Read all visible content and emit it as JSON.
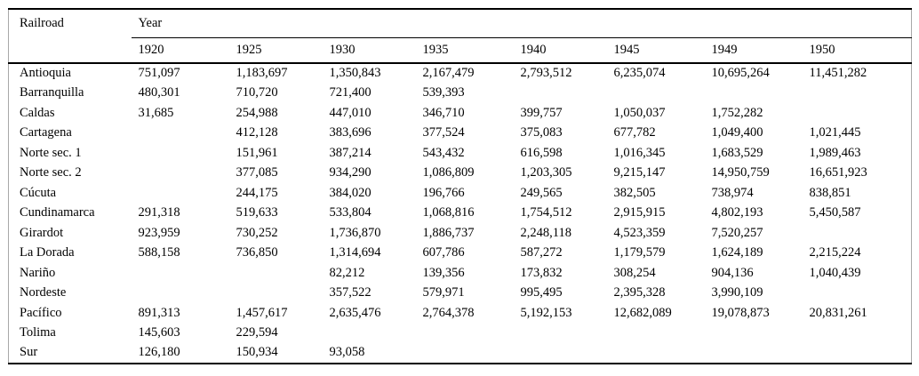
{
  "table": {
    "col_header": "Railroad",
    "year_header": "Year",
    "years": [
      "1920",
      "1925",
      "1930",
      "1935",
      "1940",
      "1945",
      "1949",
      "1950"
    ],
    "rows": [
      {
        "name": "Antioquia",
        "values": [
          "751,097",
          "1,183,697",
          "1,350,843",
          "2,167,479",
          "2,793,512",
          "6,235,074",
          "10,695,264",
          "11,451,282"
        ]
      },
      {
        "name": "Barranquilla",
        "values": [
          "480,301",
          "710,720",
          "721,400",
          "539,393",
          "",
          "",
          "",
          ""
        ]
      },
      {
        "name": "Caldas",
        "values": [
          "31,685",
          "254,988",
          "447,010",
          "346,710",
          "399,757",
          "1,050,037",
          "1,752,282",
          ""
        ]
      },
      {
        "name": "Cartagena",
        "values": [
          "",
          "412,128",
          "383,696",
          "377,524",
          "375,083",
          "677,782",
          "1,049,400",
          "1,021,445"
        ]
      },
      {
        "name": "Norte sec. 1",
        "values": [
          "",
          "151,961",
          "387,214",
          "543,432",
          "616,598",
          "1,016,345",
          "1,683,529",
          "1,989,463"
        ]
      },
      {
        "name": "Norte sec. 2",
        "values": [
          "",
          "377,085",
          "934,290",
          "1,086,809",
          "1,203,305",
          "9,215,147",
          "14,950,759",
          "16,651,923"
        ]
      },
      {
        "name": "Cúcuta",
        "values": [
          "",
          "244,175",
          "384,020",
          "196,766",
          "249,565",
          "382,505",
          "738,974",
          "838,851"
        ]
      },
      {
        "name": "Cundinamarca",
        "values": [
          "291,318",
          "519,633",
          "533,804",
          "1,068,816",
          "1,754,512",
          "2,915,915",
          "4,802,193",
          "5,450,587"
        ]
      },
      {
        "name": "Girardot",
        "values": [
          "923,959",
          "730,252",
          "1,736,870",
          "1,886,737",
          "2,248,118",
          "4,523,359",
          "7,520,257",
          ""
        ]
      },
      {
        "name": "La Dorada",
        "values": [
          "588,158",
          "736,850",
          "1,314,694",
          "607,786",
          "587,272",
          "1,179,579",
          "1,624,189",
          "2,215,224"
        ]
      },
      {
        "name": "Nariño",
        "values": [
          "",
          "",
          "82,212",
          "139,356",
          "173,832",
          "308,254",
          "904,136",
          "1,040,439"
        ]
      },
      {
        "name": "Nordeste",
        "values": [
          "",
          "",
          "357,522",
          "579,971",
          "995,495",
          "2,395,328",
          "3,990,109",
          ""
        ]
      },
      {
        "name": "Pacífico",
        "values": [
          "891,313",
          "1,457,617",
          "2,635,476",
          "2,764,378",
          "5,192,153",
          "12,682,089",
          "19,078,873",
          "20,831,261"
        ]
      },
      {
        "name": "Tolima",
        "values": [
          "145,603",
          "229,594",
          "",
          "",
          "",
          "",
          "",
          ""
        ]
      },
      {
        "name": "Sur",
        "values": [
          "126,180",
          "150,934",
          "93,058",
          "",
          "",
          "",
          "",
          ""
        ]
      }
    ]
  }
}
